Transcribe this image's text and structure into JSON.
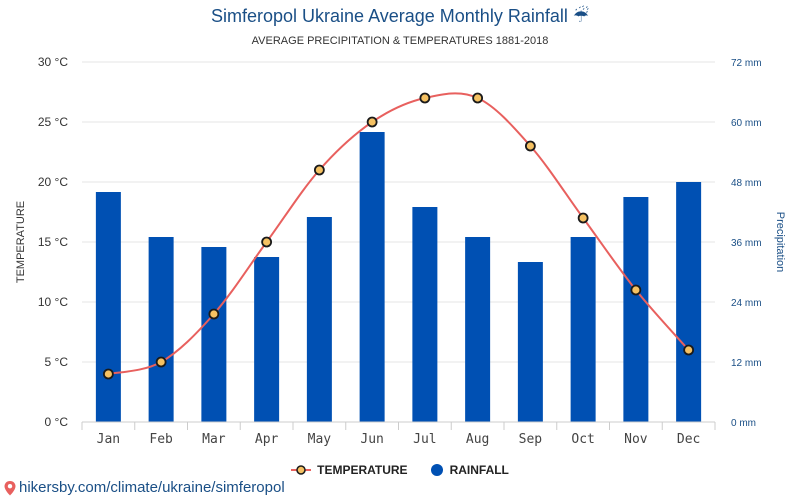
{
  "header": {
    "title": "Simferopol Ukraine Average Monthly Rainfall ☔",
    "subtitle": "AVERAGE PRECIPITATION & TEMPERATURES 1881-2018"
  },
  "legend": {
    "temperature_label": "TEMPERATURE",
    "rainfall_label": "RAINFALL"
  },
  "footer": {
    "link_text": "hikersby.com/climate/ukraine/simferopol"
  },
  "colors": {
    "bar": "#0050b3",
    "line": "#e8605e",
    "marker_fill": "#f5c162",
    "marker_stroke": "#1a1a1a",
    "grid": "#e6e6e6",
    "right_axis_text": "#1a4f86",
    "title": "#1a4f86"
  },
  "chart_data": {
    "type": "bar",
    "categories": [
      "Jan",
      "Feb",
      "Mar",
      "Apr",
      "May",
      "Jun",
      "Jul",
      "Aug",
      "Sep",
      "Oct",
      "Nov",
      "Dec"
    ],
    "series": [
      {
        "name": "TEMPERATURE",
        "type": "line",
        "axis": "left",
        "values": [
          4,
          5,
          9,
          15,
          21,
          25,
          27,
          27,
          23,
          17,
          11,
          6
        ]
      },
      {
        "name": "RAINFALL",
        "type": "bar",
        "axis": "right",
        "values": [
          46,
          37,
          35,
          33,
          41,
          58,
          43,
          37,
          32,
          37,
          45,
          48
        ]
      }
    ],
    "y_left": {
      "label": "TEMPERATURE",
      "range": [
        0,
        30
      ],
      "ticks": [
        "0 °C",
        "5 °C",
        "10 °C",
        "15 °C",
        "20 °C",
        "25 °C",
        "30 °C"
      ]
    },
    "y_right": {
      "label": "Precipitation",
      "range": [
        0,
        72
      ],
      "ticks": [
        "0 mm",
        "12 mm",
        "24 mm",
        "36 mm",
        "48 mm",
        "60 mm",
        "72 mm"
      ]
    },
    "grid": true,
    "legend_position": "bottom-center"
  }
}
